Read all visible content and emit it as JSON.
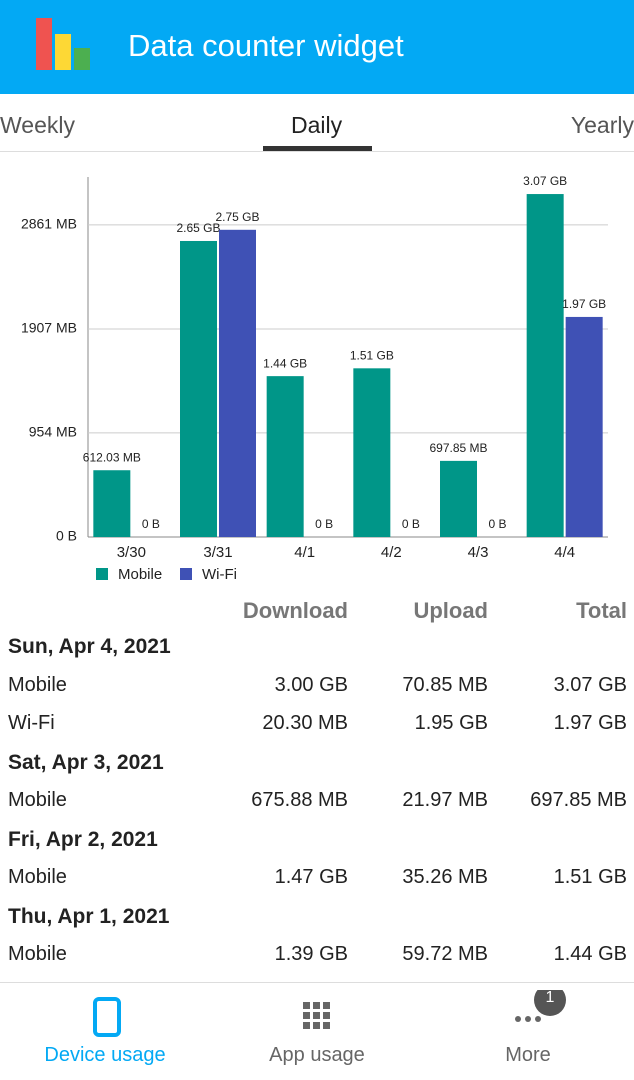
{
  "header": {
    "title": "Data counter widget"
  },
  "tabs": [
    "Weekly",
    "Daily",
    "Yearly"
  ],
  "chart_data": {
    "type": "bar",
    "categories": [
      "3/30",
      "3/31",
      "4/1",
      "4/2",
      "4/3",
      "4/4"
    ],
    "series": [
      {
        "name": "Mobile",
        "color": "#009688",
        "values": [
          612.03,
          2713.6,
          1474.56,
          1546.24,
          697.85,
          3143.68
        ],
        "value_labels": [
          "612.03 MB",
          "2.65 GB",
          "1.44 GB",
          "1.51 GB",
          "697.85 MB",
          "3.07 GB"
        ]
      },
      {
        "name": "Wi-Fi",
        "color": "#3f51b5",
        "values": [
          0,
          2816,
          0,
          0,
          0,
          2017.28
        ],
        "value_labels": [
          "0 B",
          "2.75 GB",
          "0 B",
          "0 B",
          "0 B",
          "1.97 GB"
        ]
      }
    ],
    "ylim": [
      0,
      3300
    ],
    "yticks": [
      {
        "value": 0,
        "label": "0 B"
      },
      {
        "value": 954,
        "label": "954 MB"
      },
      {
        "value": 1907,
        "label": "1907 MB"
      },
      {
        "value": 2861,
        "label": "2861 MB"
      }
    ],
    "grid": true
  },
  "table": {
    "columns": [
      "Download",
      "Upload",
      "Total"
    ],
    "groups": [
      {
        "date": "Sun, Apr 4, 2021",
        "rows": [
          [
            "Mobile",
            "3.00 GB",
            "70.85 MB",
            "3.07 GB"
          ],
          [
            "Wi-Fi",
            "20.30 MB",
            "1.95 GB",
            "1.97 GB"
          ]
        ]
      },
      {
        "date": "Sat, Apr 3, 2021",
        "rows": [
          [
            "Mobile",
            "675.88 MB",
            "21.97 MB",
            "697.85 MB"
          ]
        ]
      },
      {
        "date": "Fri, Apr 2, 2021",
        "rows": [
          [
            "Mobile",
            "1.47 GB",
            "35.26 MB",
            "1.51 GB"
          ]
        ]
      },
      {
        "date": "Thu, Apr 1, 2021",
        "rows": [
          [
            "Mobile",
            "1.39 GB",
            "59.72 MB",
            "1.44 GB"
          ]
        ]
      }
    ]
  },
  "bottom_nav": {
    "items": [
      "Device usage",
      "App usage",
      "More"
    ],
    "badge": "1"
  }
}
